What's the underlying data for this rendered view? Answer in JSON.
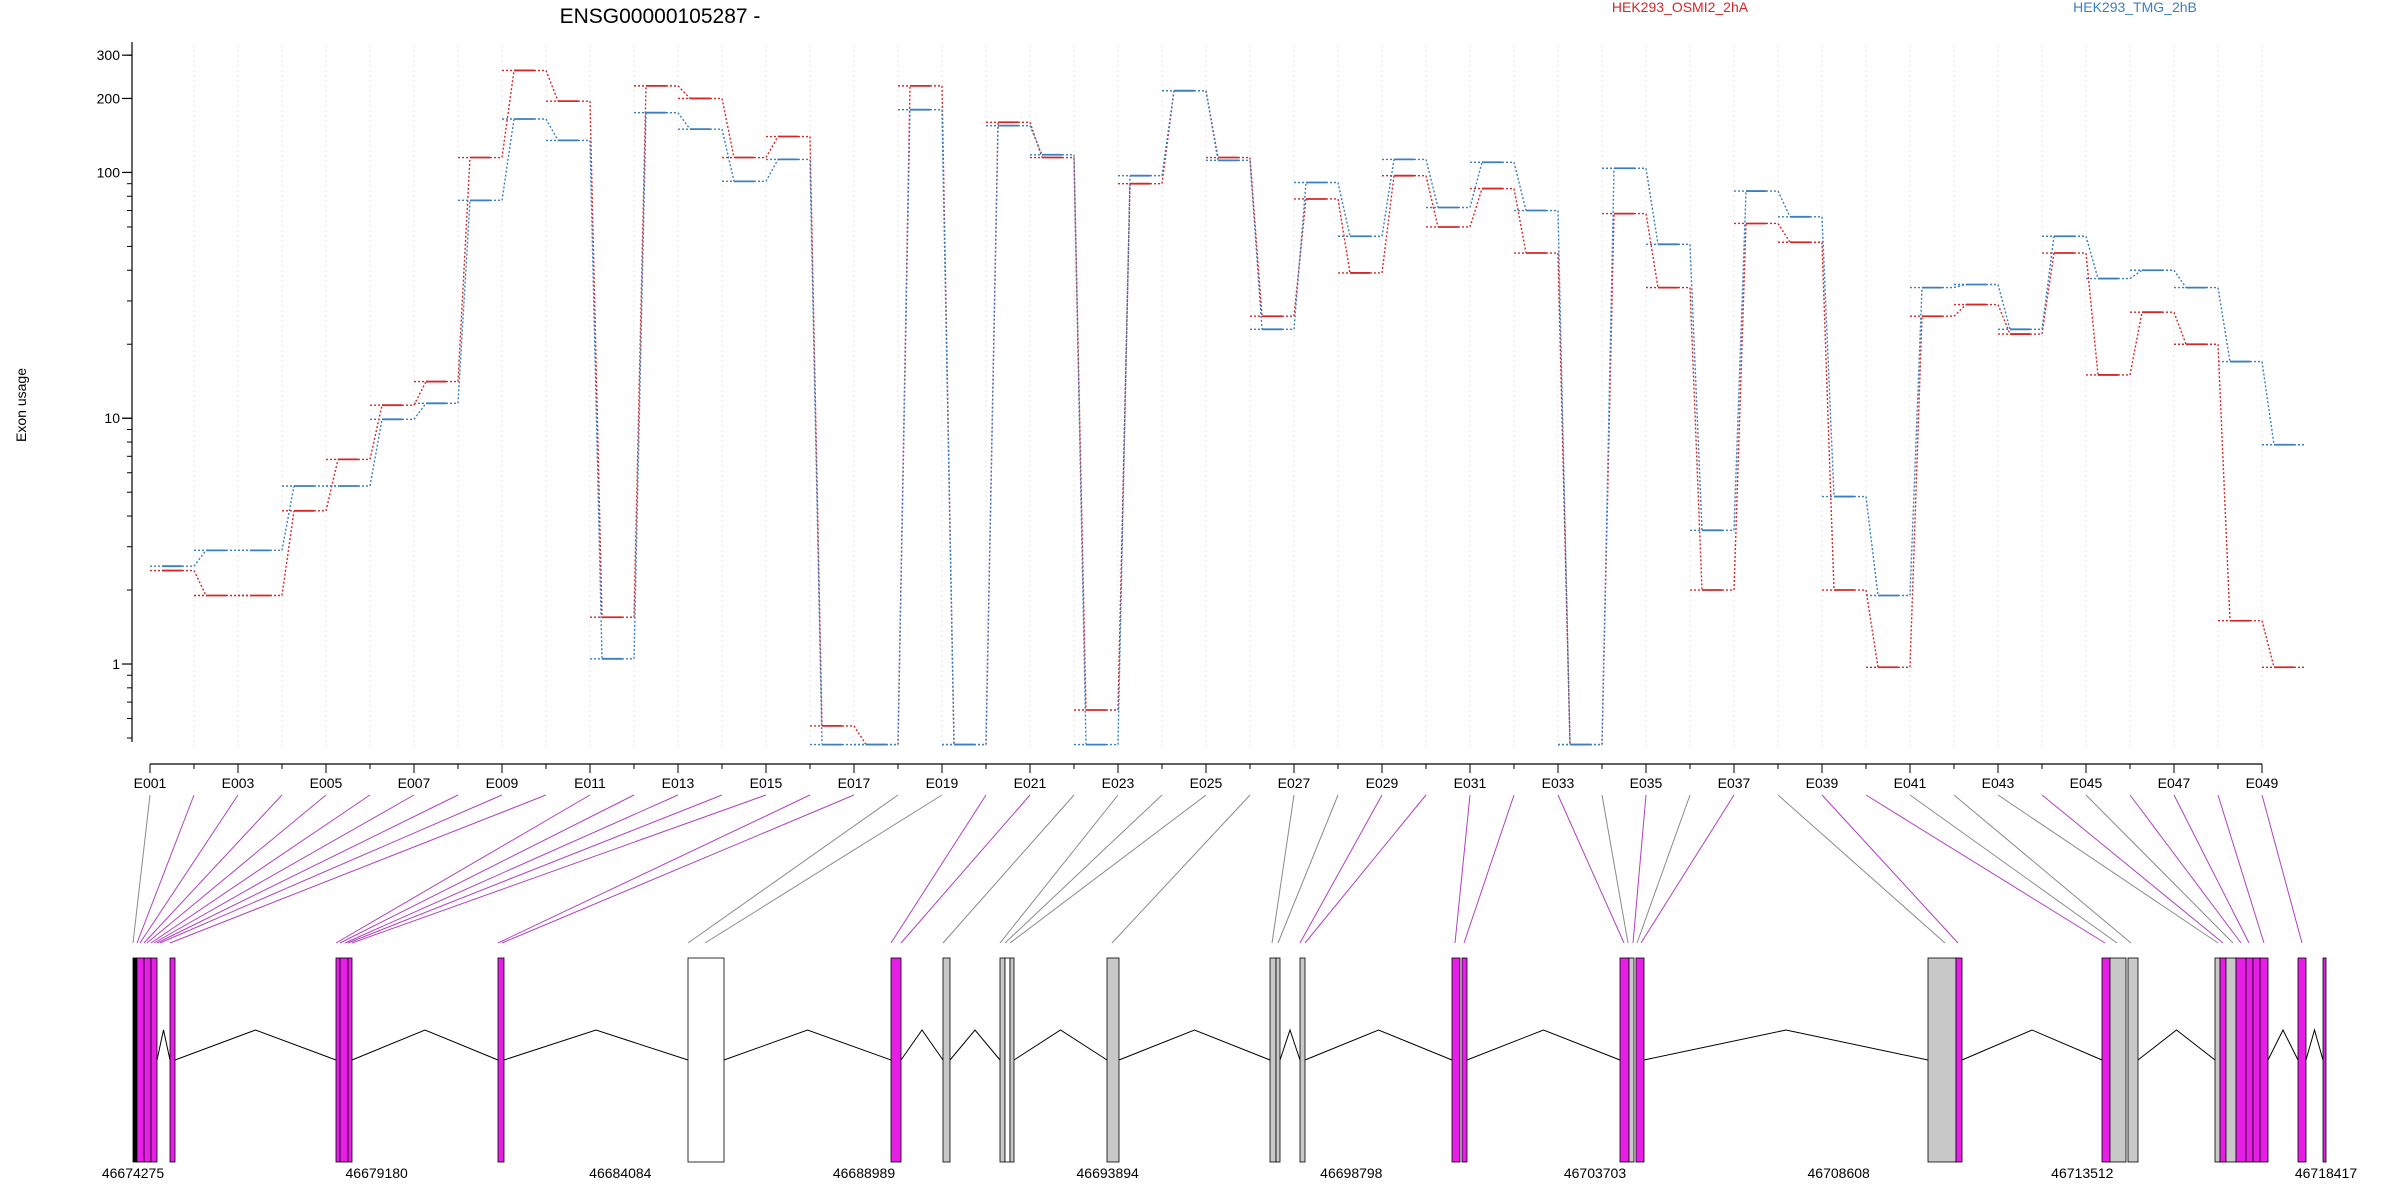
{
  "chart_data": {
    "type": "line",
    "title": "ENSG00000105287 -",
    "xlabel": "",
    "ylabel": "Exon usage",
    "y_scale": "log",
    "ylim": [
      0.5,
      330
    ],
    "y_ticks": [
      1,
      10,
      100,
      200,
      300
    ],
    "grid": "vertical",
    "legend_position": "top-right",
    "categories": [
      "E001",
      "E002",
      "E003",
      "E004",
      "E005",
      "E006",
      "E007",
      "E008",
      "E009",
      "E010",
      "E011",
      "E012",
      "E013",
      "E014",
      "E015",
      "E016",
      "E017",
      "E018",
      "E019",
      "E020",
      "E021",
      "E022",
      "E023",
      "E024",
      "E025",
      "E026",
      "E027",
      "E028",
      "E029",
      "E030",
      "E031",
      "E032",
      "E033",
      "E034",
      "E035",
      "E036",
      "E037",
      "E038",
      "E039",
      "E040",
      "E041",
      "E042",
      "E043",
      "E044",
      "E045",
      "E046",
      "E047",
      "E048",
      "E049"
    ],
    "x_tick_labels": [
      "E001",
      "E003",
      "E005",
      "E007",
      "E009",
      "E011",
      "E013",
      "E015",
      "E017",
      "E019",
      "E021",
      "E023",
      "E025",
      "E027",
      "E029",
      "E031",
      "E033",
      "E035",
      "E037",
      "E039",
      "E041",
      "E043",
      "E045",
      "E047",
      "E049"
    ],
    "series": [
      {
        "name": "HEK293_OSMI2_2hA",
        "color": "#d62728",
        "values": [
          2.4,
          1.9,
          1.9,
          4.2,
          6.8,
          11.3,
          14.1,
          115,
          260,
          195,
          1.55,
          225,
          200,
          115,
          140,
          0.56,
          0.47,
          225,
          0.47,
          160,
          115,
          0.65,
          90,
          215,
          115,
          26,
          78,
          39,
          97,
          60,
          86,
          47,
          0.47,
          68,
          34,
          2.0,
          62,
          52,
          2.0,
          0.97,
          26,
          29,
          22,
          47,
          15,
          27,
          20,
          1.5,
          0.97
        ]
      },
      {
        "name": "HEK293_TMG_2hB",
        "color": "#3a7fc1",
        "values": [
          2.5,
          2.9,
          2.9,
          5.3,
          5.3,
          9.9,
          11.5,
          77,
          165,
          135,
          1.05,
          175,
          150,
          92,
          113,
          0.47,
          0.47,
          180,
          0.47,
          155,
          118,
          0.47,
          97,
          215,
          112,
          23,
          91,
          55,
          113,
          72,
          110,
          70,
          0.47,
          104,
          51,
          3.5,
          84,
          66,
          4.8,
          1.9,
          34,
          35,
          23,
          55,
          37,
          40,
          34,
          17,
          7.8
        ]
      }
    ],
    "genomic_axis": {
      "tick_labels": [
        "46674275",
        "46679180",
        "46684084",
        "46688989",
        "46693894",
        "46698798",
        "46703703",
        "46708608",
        "46713512",
        "46718417"
      ],
      "range": [
        46674275,
        46718417
      ]
    },
    "exon_highlight_color": "#e61ee6",
    "exon_neutral_color": "#c8c8c8"
  }
}
